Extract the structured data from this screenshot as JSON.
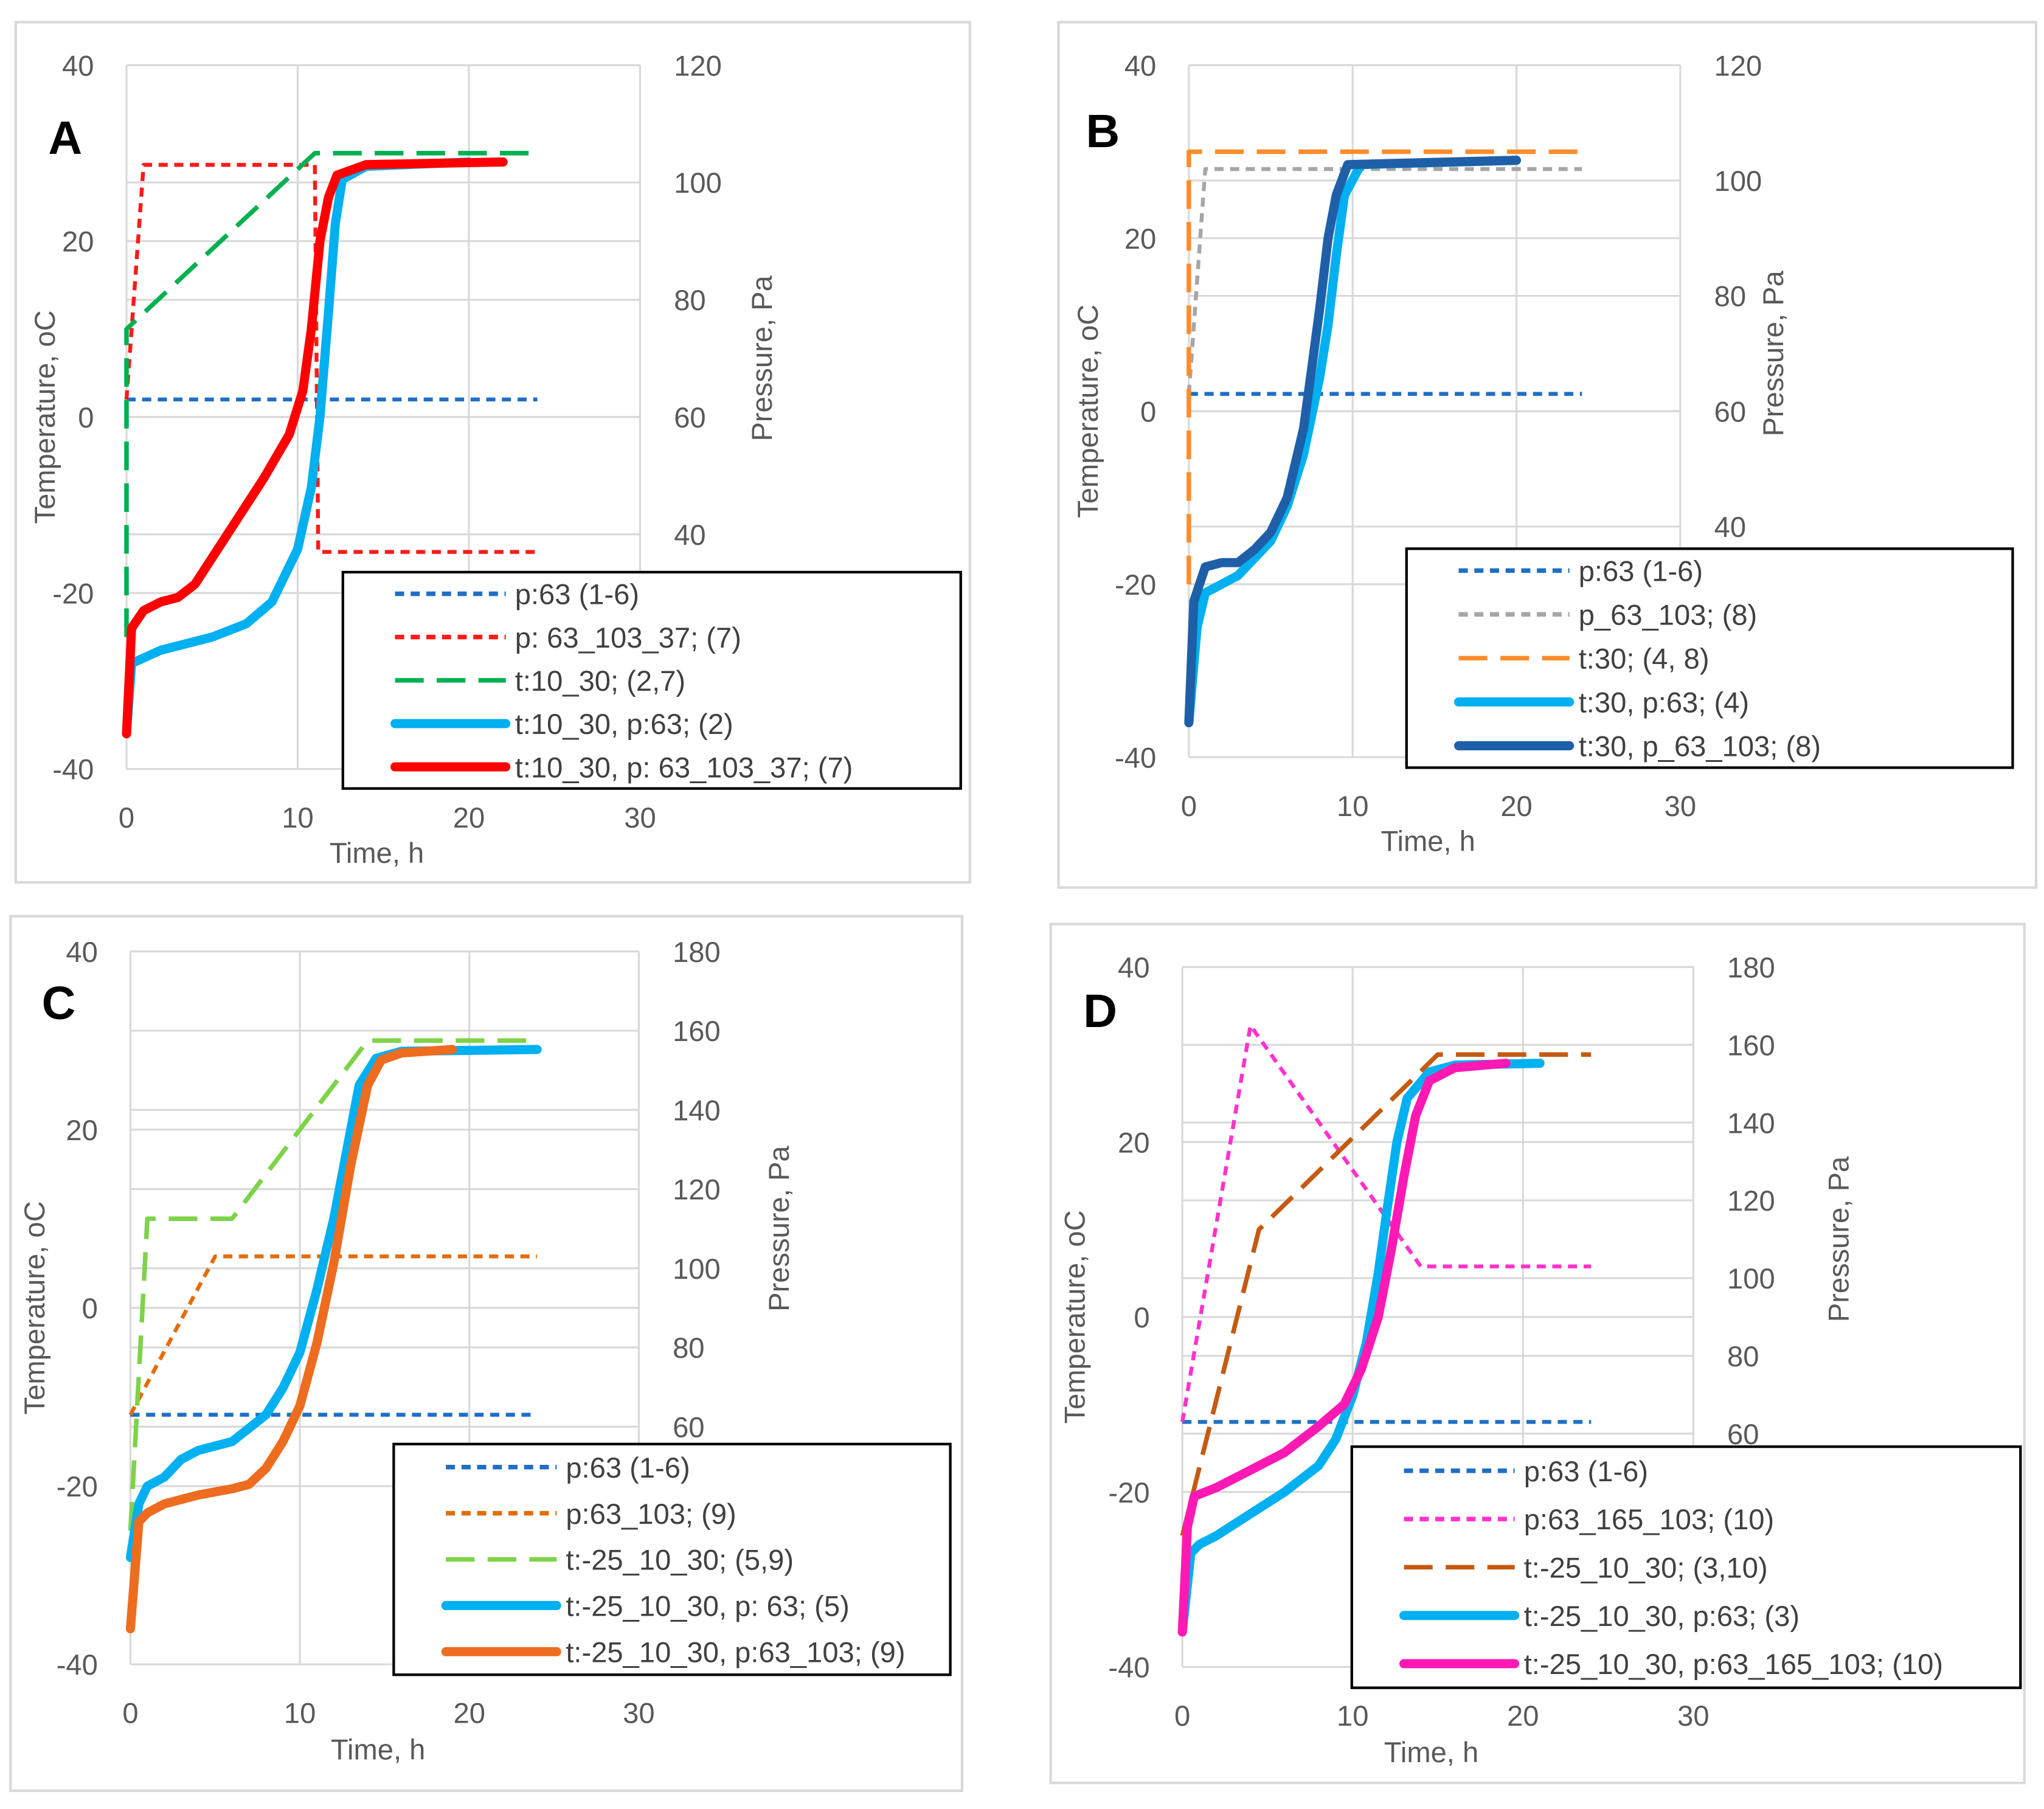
{
  "chart_data": [
    {
      "type": "line",
      "panel_label": "A",
      "xlabel": "Time, h",
      "ylabel": "Temperature, oC",
      "y2label": "Pressure, Pa",
      "xlim": [
        0,
        30
      ],
      "xticks": [
        0,
        10,
        20,
        30
      ],
      "ylim": [
        -40,
        40
      ],
      "yticks": [
        -40,
        -20,
        0,
        20,
        40
      ],
      "y2lim": [
        0,
        120
      ],
      "y2ticks": [
        40,
        60,
        80,
        100,
        120
      ],
      "grid": true,
      "legend_position": "bottom-right",
      "series": [
        {
          "name": "p:63 (1-6)",
          "axis": "right",
          "style": "dotted",
          "color": "#1f6fc5",
          "x": [
            0,
            24
          ],
          "y": [
            63,
            63
          ]
        },
        {
          "name": "p: 63_103_37; (7)",
          "axis": "right",
          "style": "dotted",
          "color": "#ff1a1a",
          "x": [
            0,
            1,
            11,
            11.2,
            24
          ],
          "y": [
            63,
            103,
            103,
            37,
            37
          ]
        },
        {
          "name": "t:10_30; (2,7)",
          "axis": "left",
          "style": "dashed",
          "color": "#00b050",
          "x": [
            0,
            0,
            11,
            24
          ],
          "y": [
            -25,
            10,
            30,
            30
          ]
        },
        {
          "name": "t:10_30, p:63; (2)",
          "axis": "left",
          "style": "solid",
          "color": "#00b0f0",
          "x": [
            0,
            0.3,
            2,
            5,
            7,
            8.5,
            10,
            10.8,
            11.3,
            11.8,
            12.2,
            12.6,
            14,
            20
          ],
          "y": [
            -36,
            -28,
            -26.5,
            -25,
            -23.5,
            -21,
            -15,
            -8,
            0,
            12,
            22,
            27,
            28.5,
            29
          ]
        },
        {
          "name": "t:10_30, p: 63_103_37; (7)",
          "axis": "left",
          "style": "solid",
          "color": "#ff0000",
          "x": [
            0,
            0.3,
            1,
            2,
            3,
            4,
            6,
            8,
            9.5,
            10.3,
            10.8,
            11.3,
            11.8,
            12.3,
            14,
            22
          ],
          "y": [
            -36,
            -24,
            -22,
            -21,
            -20.5,
            -19,
            -13,
            -7,
            -2,
            3,
            10,
            20,
            25,
            27.5,
            28.7,
            29
          ]
        }
      ]
    },
    {
      "type": "line",
      "panel_label": "B",
      "xlabel": "Time, h",
      "ylabel": "Temperature, oC",
      "y2label": "Pressure, Pa",
      "xlim": [
        0,
        30
      ],
      "xticks": [
        0,
        10,
        20,
        30
      ],
      "ylim": [
        -40,
        40
      ],
      "yticks": [
        -40,
        -20,
        0,
        20,
        40
      ],
      "y2lim": [
        0,
        120
      ],
      "y2ticks": [
        40,
        60,
        80,
        100,
        120
      ],
      "grid": true,
      "legend_position": "bottom-right",
      "series": [
        {
          "name": "p:63 (1-6)",
          "axis": "right",
          "style": "dotted",
          "color": "#1f6fc5",
          "x": [
            0,
            24
          ],
          "y": [
            63,
            63
          ]
        },
        {
          "name": "p_63_103; (8)",
          "axis": "right",
          "style": "dotted",
          "color": "#a6a6a6",
          "x": [
            0,
            1,
            24
          ],
          "y": [
            63,
            102,
            102
          ]
        },
        {
          "name": "t:30; (4, 8)",
          "axis": "left",
          "style": "dashed",
          "color": "#ff8c2a",
          "x": [
            0,
            0,
            24
          ],
          "y": [
            -20,
            30,
            30
          ]
        },
        {
          "name": "t:30, p:63; (4)",
          "axis": "left",
          "style": "solid",
          "color": "#00b0f0",
          "x": [
            0,
            0.5,
            1,
            2,
            3,
            5,
            6,
            7,
            8,
            8.5,
            9,
            9.5,
            10.5,
            20
          ],
          "y": [
            -36,
            -25,
            -21,
            -20,
            -19,
            -15,
            -11,
            -5,
            4,
            10,
            18,
            25,
            28.5,
            29
          ]
        },
        {
          "name": "t:30, p_63_103; (8)",
          "axis": "left",
          "style": "solid",
          "color": "#1f5fa8",
          "x": [
            0,
            0.3,
            1,
            2,
            3,
            4,
            5,
            6,
            7,
            7.5,
            8,
            8.5,
            9,
            9.7,
            20
          ],
          "y": [
            -36,
            -22,
            -18,
            -17.5,
            -17.5,
            -16,
            -14,
            -10,
            -2,
            5,
            12,
            20,
            25,
            28.5,
            29
          ]
        }
      ]
    },
    {
      "type": "line",
      "panel_label": "C",
      "xlabel": "Time, h",
      "ylabel": "Temperature, oC",
      "y2label": "Pressure, Pa",
      "xlim": [
        0,
        30
      ],
      "xticks": [
        0,
        10,
        20,
        30
      ],
      "ylim": [
        -40,
        40
      ],
      "yticks": [
        -40,
        -20,
        0,
        20,
        40
      ],
      "y2lim": [
        0,
        180
      ],
      "y2ticks": [
        60,
        80,
        100,
        120,
        140,
        160,
        180
      ],
      "grid": true,
      "legend_position": "bottom-right",
      "series": [
        {
          "name": "p:63 (1-6)",
          "axis": "right",
          "style": "dotted",
          "color": "#1f6fc5",
          "x": [
            0,
            24
          ],
          "y": [
            63,
            63
          ]
        },
        {
          "name": " p:63_103; (9)",
          "axis": "right",
          "style": "dotted",
          "color": "#e46c0a",
          "x": [
            0,
            5,
            24
          ],
          "y": [
            63,
            103,
            103
          ]
        },
        {
          "name": "t:-25_10_30; (5,9)",
          "axis": "left",
          "style": "dashed",
          "color": "#7ed348",
          "x": [
            0,
            1,
            6,
            14,
            24
          ],
          "y": [
            -25,
            10,
            10,
            30,
            30
          ]
        },
        {
          "name": "t:-25_10_30, p: 63; (5)",
          "axis": "left",
          "style": "solid",
          "color": "#00b0f0",
          "x": [
            0,
            0.5,
            1,
            2,
            3,
            4,
            6,
            8,
            9,
            10,
            11,
            12,
            13,
            13.5,
            14.5,
            16,
            24
          ],
          "y": [
            -28,
            -22,
            -20,
            -19,
            -17,
            -16,
            -15,
            -12,
            -9,
            -5,
            2,
            10,
            20,
            25,
            28,
            28.8,
            29
          ]
        },
        {
          "name": "t:-25_10_30, p:63_103; (9)",
          "axis": "left",
          "style": "solid",
          "color": "#ed6c1f",
          "x": [
            0,
            0.5,
            1,
            2,
            4,
            6,
            7,
            8,
            9,
            10,
            11,
            12,
            13,
            14,
            14.8,
            16,
            19
          ],
          "y": [
            -36,
            -24,
            -23,
            -22,
            -21,
            -20.3,
            -19.8,
            -18,
            -15,
            -11,
            -4,
            5,
            16,
            25,
            27.8,
            28.6,
            29
          ]
        }
      ]
    },
    {
      "type": "line",
      "panel_label": "D",
      "xlabel": "Time, h",
      "ylabel": "Temperature, oC",
      "y2label": "Pressure, Pa",
      "xlim": [
        0,
        30
      ],
      "xticks": [
        0,
        10,
        20,
        30
      ],
      "ylim": [
        -40,
        40
      ],
      "yticks": [
        -40,
        -20,
        0,
        20,
        40
      ],
      "y2lim": [
        0,
        180
      ],
      "y2ticks": [
        60,
        80,
        100,
        120,
        140,
        160,
        180
      ],
      "grid": true,
      "legend_position": "bottom-right",
      "series": [
        {
          "name": "p:63 (1-6)",
          "axis": "right",
          "style": "dotted",
          "color": "#1f6fc5",
          "x": [
            0,
            24
          ],
          "y": [
            63,
            63
          ]
        },
        {
          "name": " p:63_165_103; (10)",
          "axis": "right",
          "style": "dotted",
          "color": "#ff33cc",
          "x": [
            0,
            4,
            14,
            24
          ],
          "y": [
            63,
            165,
            103,
            103
          ]
        },
        {
          "name": "t:-25_10_30; (3,10)",
          "axis": "left",
          "style": "dashed",
          "color": "#c55a11",
          "x": [
            0,
            4.5,
            15,
            24
          ],
          "y": [
            -25,
            10,
            30,
            30
          ]
        },
        {
          "name": "t:-25_10_30, p:63; (3)",
          "axis": "left",
          "style": "solid",
          "color": "#00b0f0",
          "x": [
            0,
            0.5,
            1,
            2,
            4,
            6,
            8,
            9,
            10,
            10.8,
            11.5,
            12,
            12.6,
            13.2,
            14.5,
            16,
            21
          ],
          "y": [
            -36,
            -27,
            -26,
            -25,
            -22.5,
            -20,
            -17,
            -14,
            -9,
            -3,
            5,
            12,
            20,
            25,
            28,
            28.8,
            29
          ]
        },
        {
          "name": "t:-25_10_30, p:63_165_103; (10)",
          "axis": "left",
          "style": "solid",
          "color": "#ff19b4",
          "x": [
            0,
            0.3,
            0.7,
            2,
            4,
            6,
            8,
            9.5,
            10.5,
            11.5,
            12.3,
            13,
            13.7,
            14.5,
            16,
            19
          ],
          "y": [
            -36,
            -24,
            -20.5,
            -19.5,
            -17.5,
            -15.5,
            -12.5,
            -10,
            -6,
            0,
            8,
            16,
            23,
            27,
            28.5,
            29
          ]
        }
      ]
    }
  ]
}
